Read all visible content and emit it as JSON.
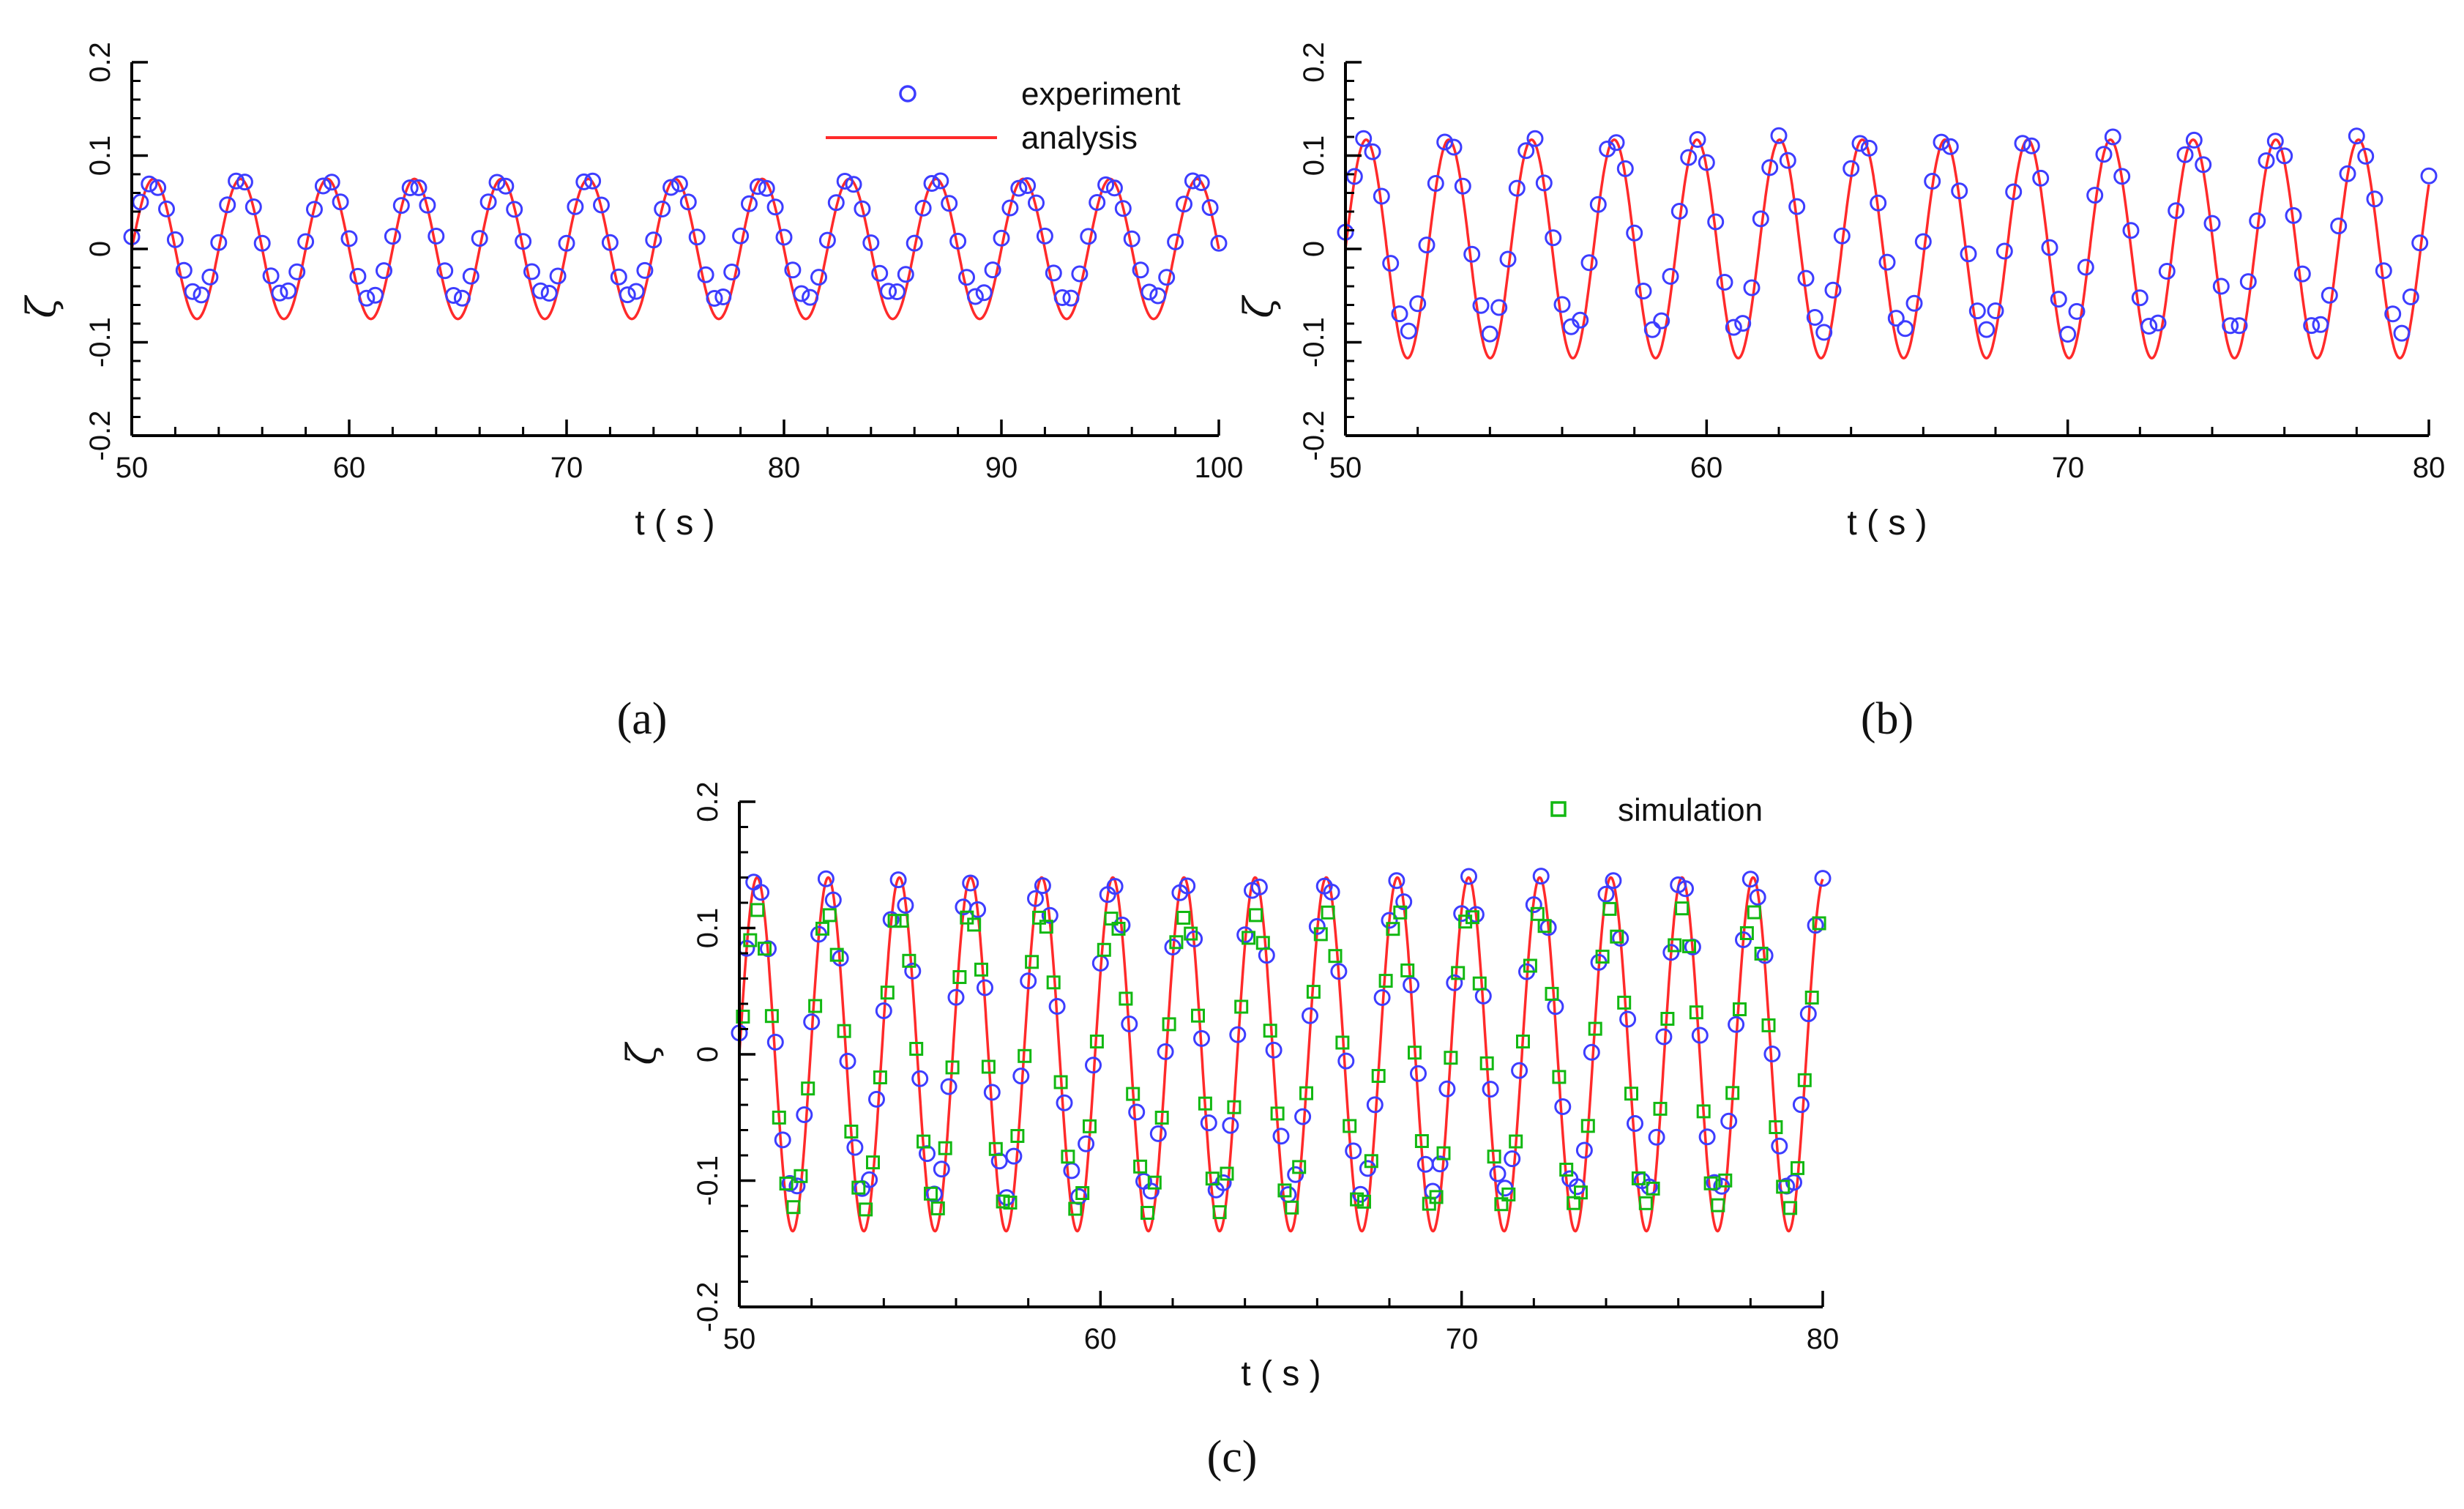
{
  "colors": {
    "experiment": "#3d3dff",
    "analysis": "#ff2a2a",
    "simulation": "#12b812",
    "axis": "#000000"
  },
  "legend": {
    "experiment": "experiment",
    "analysis": "analysis",
    "simulation": "simulation"
  },
  "chart_data": [
    {
      "panel": "a",
      "panel_label": "(a)",
      "type": "line",
      "xlabel": "t ( s )",
      "ylabel": "ζ",
      "xlim": [
        50,
        100
      ],
      "ylim": [
        -0.2,
        0.2
      ],
      "xticks": [
        "50",
        "60",
        "70",
        "80",
        "90",
        "100"
      ],
      "yticks": [
        "-0.2",
        "-0.1",
        "0",
        "0.1",
        "0.2"
      ],
      "grid": false,
      "legend_position": "top-right",
      "series": [
        {
          "name": "analysis",
          "kind": "line",
          "amplitude": 0.075,
          "period_s": 4.0,
          "phase_start_s": 50
        },
        {
          "name": "experiment",
          "kind": "markers",
          "marker": "circle",
          "peak": 0.072,
          "trough": -0.052,
          "period_s": 4.0,
          "sample_dt_s": 0.4
        }
      ]
    },
    {
      "panel": "b",
      "panel_label": "(b)",
      "type": "line",
      "xlabel": "t ( s )",
      "ylabel": "ζ",
      "xlim": [
        50,
        80
      ],
      "ylim": [
        -0.2,
        0.2
      ],
      "xticks": [
        "50",
        "60",
        "70",
        "80"
      ],
      "yticks": [
        "-0.2",
        "-0.1",
        "0",
        "0.1",
        "0.2"
      ],
      "grid": false,
      "series": [
        {
          "name": "analysis",
          "kind": "line",
          "amplitude": 0.117,
          "period_s": 2.29,
          "phase_start_s": 50
        },
        {
          "name": "experiment",
          "kind": "markers",
          "marker": "circle",
          "peak": 0.118,
          "trough": -0.088,
          "period_s": 2.29,
          "sample_dt_s": 0.25
        }
      ]
    },
    {
      "panel": "c",
      "panel_label": "(c)",
      "type": "line",
      "xlabel": "t ( s )",
      "ylabel": "ζ",
      "xlim": [
        50,
        80
      ],
      "ylim": [
        -0.2,
        0.2
      ],
      "xticks": [
        "50",
        "60",
        "70",
        "80"
      ],
      "yticks": [
        "-0.2",
        "-0.1",
        "0",
        "0.1",
        "0.2"
      ],
      "grid": false,
      "legend_position": "top-right",
      "series": [
        {
          "name": "analysis",
          "kind": "line",
          "amplitude": 0.14,
          "period_s": 1.97,
          "phase_start_s": 50
        },
        {
          "name": "experiment",
          "kind": "markers",
          "marker": "circle",
          "peak": 0.138,
          "trough": -0.11,
          "period_s": 1.97,
          "sample_dt_s": 0.2
        },
        {
          "name": "simulation",
          "kind": "markers",
          "marker": "square",
          "peak": 0.112,
          "trough": -0.122,
          "period_s": 1.97,
          "sample_dt_s": 0.2
        }
      ]
    }
  ]
}
